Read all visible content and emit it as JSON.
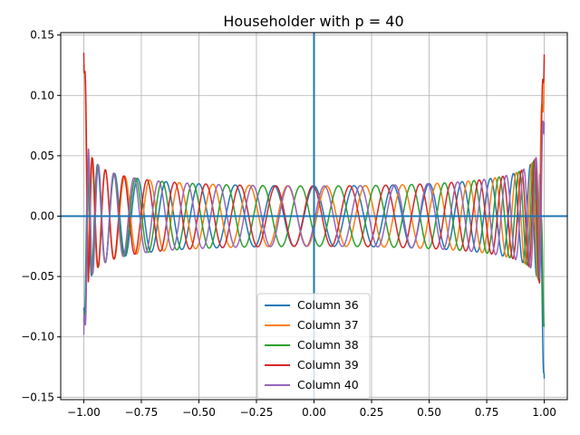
{
  "chart_data": {
    "type": "line",
    "title": "Householder with p = 40",
    "xlabel": "",
    "ylabel": "",
    "xlim": [
      -1.1,
      1.1
    ],
    "ylim": [
      -0.152,
      0.152
    ],
    "grid": true,
    "legend_position": "lower center",
    "x_ticks": [
      -1.0,
      -0.75,
      -0.5,
      -0.25,
      0.0,
      0.25,
      0.5,
      0.75,
      1.0
    ],
    "x_tick_labels": [
      "−1.00",
      "−0.75",
      "−0.50",
      "−0.25",
      "0.00",
      "0.25",
      "0.50",
      "0.75",
      "1.00"
    ],
    "y_ticks": [
      -0.15,
      -0.1,
      -0.05,
      0.0,
      0.05,
      0.1,
      0.15
    ],
    "y_tick_labels": [
      "−0.15",
      "−0.10",
      "−0.05",
      "0.00",
      "0.05",
      "0.10",
      "0.15"
    ],
    "reference_lines": {
      "vertical_at_x": 0,
      "horizontal_at_y": 0,
      "color": "#1f77b4"
    },
    "series": [
      {
        "name": "Column 36",
        "color": "#1f77b4",
        "column": 36,
        "end_left": -0.08,
        "end_right": -0.137,
        "x": [
          -1.0,
          -0.96,
          -0.9,
          -0.75,
          -0.5,
          -0.25,
          0.0,
          0.25,
          0.5,
          0.75,
          0.9,
          0.96,
          1.0
        ],
        "y": [
          -0.08,
          0.05,
          -0.04,
          0.032,
          -0.027,
          0.026,
          -0.022,
          0.026,
          -0.027,
          0.032,
          -0.04,
          0.05,
          -0.137
        ]
      },
      {
        "name": "Column 37",
        "color": "#ff7f0e",
        "column": 37,
        "end_left": 0.128,
        "end_right": 0.13,
        "x": [
          -1.0,
          -0.96,
          -0.9,
          -0.75,
          -0.5,
          -0.25,
          0.0,
          0.25,
          0.5,
          0.75,
          0.9,
          0.96,
          1.0
        ],
        "y": [
          0.128,
          -0.05,
          0.04,
          -0.032,
          0.027,
          -0.026,
          0.024,
          -0.026,
          0.027,
          -0.032,
          0.04,
          -0.05,
          0.13
        ]
      },
      {
        "name": "Column 38",
        "color": "#2ca02c",
        "column": 38,
        "end_left": -0.09,
        "end_right": -0.09,
        "x": [
          -1.0,
          -0.96,
          -0.9,
          -0.75,
          -0.5,
          -0.25,
          0.0,
          0.25,
          0.5,
          0.75,
          0.9,
          0.96,
          1.0
        ],
        "y": [
          -0.09,
          0.05,
          -0.04,
          0.032,
          -0.027,
          0.026,
          -0.026,
          0.026,
          -0.027,
          0.032,
          -0.04,
          0.05,
          -0.09
        ]
      },
      {
        "name": "Column 39",
        "color": "#d62728",
        "column": 39,
        "end_left": 0.138,
        "end_right": 0.136,
        "x": [
          -1.0,
          -0.96,
          -0.9,
          -0.75,
          -0.5,
          -0.25,
          0.0,
          0.25,
          0.5,
          0.75,
          0.9,
          0.96,
          1.0
        ],
        "y": [
          0.138,
          -0.05,
          0.04,
          -0.032,
          0.027,
          -0.026,
          0.026,
          -0.026,
          0.027,
          -0.032,
          0.04,
          -0.05,
          0.136
        ]
      },
      {
        "name": "Column 40",
        "color": "#9467bd",
        "column": 40,
        "end_left": -0.1,
        "end_right": 0.08,
        "x": [
          -1.0,
          -0.96,
          -0.9,
          -0.75,
          -0.5,
          -0.25,
          0.0,
          0.25,
          0.5,
          0.75,
          0.9,
          0.96,
          1.0
        ],
        "y": [
          -0.1,
          0.05,
          -0.04,
          0.032,
          -0.027,
          0.026,
          -0.026,
          0.026,
          -0.027,
          0.032,
          -0.04,
          0.05,
          0.08
        ]
      }
    ]
  }
}
